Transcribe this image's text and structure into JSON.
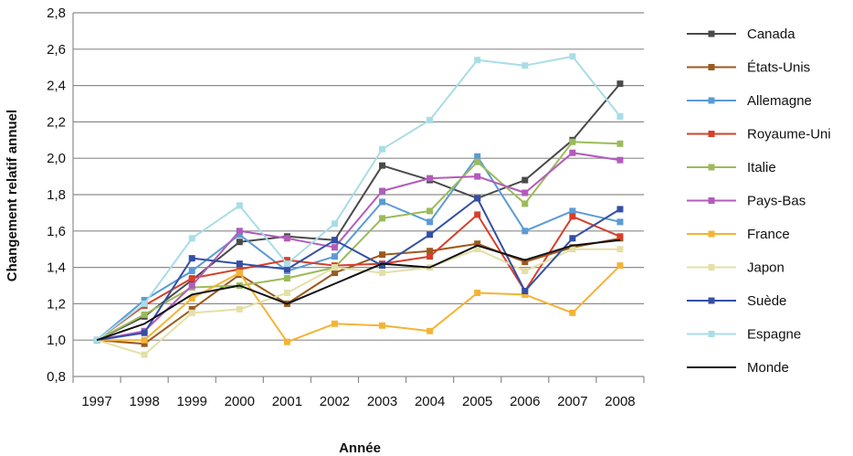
{
  "chart_data": {
    "type": "line",
    "xlabel": "Année",
    "ylabel": "Changement relatif annuel",
    "ylim": [
      0.8,
      2.8
    ],
    "y_ticks": [
      "0,8",
      "1,0",
      "1,2",
      "1,4",
      "1,6",
      "1,8",
      "2,0",
      "2,2",
      "2,4",
      "2,6",
      "2,8"
    ],
    "y_tick_values": [
      0.8,
      1.0,
      1.2,
      1.4,
      1.6,
      1.8,
      2.0,
      2.2,
      2.4,
      2.6,
      2.8
    ],
    "categories": [
      "1997",
      "1998",
      "1999",
      "2000",
      "2001",
      "2002",
      "2003",
      "2004",
      "2005",
      "2006",
      "2007",
      "2008"
    ],
    "grid": true,
    "legend_position": "right",
    "series": [
      {
        "name": "Canada",
        "color": "#4a4a4a",
        "marker": true,
        "values": [
          1.0,
          1.13,
          1.33,
          1.54,
          1.57,
          1.55,
          1.96,
          1.88,
          1.78,
          1.88,
          2.1,
          2.41
        ]
      },
      {
        "name": "États-Unis",
        "color": "#9b5a1e",
        "marker": true,
        "values": [
          1.0,
          0.98,
          1.17,
          1.36,
          1.2,
          1.37,
          1.47,
          1.49,
          1.53,
          1.43,
          1.51,
          1.56
        ]
      },
      {
        "name": "Allemagne",
        "color": "#5b9bd5",
        "marker": true,
        "values": [
          1.0,
          1.22,
          1.38,
          1.58,
          1.38,
          1.46,
          1.76,
          1.65,
          2.01,
          1.6,
          1.71,
          1.65
        ]
      },
      {
        "name": "Royaume-Uni",
        "color": "#d6402a",
        "marker": true,
        "values": [
          1.0,
          1.19,
          1.34,
          1.39,
          1.44,
          1.41,
          1.42,
          1.46,
          1.69,
          1.27,
          1.68,
          1.57
        ]
      },
      {
        "name": "Italie",
        "color": "#9bbb59",
        "marker": true,
        "values": [
          1.0,
          1.14,
          1.29,
          1.3,
          1.34,
          1.4,
          1.67,
          1.71,
          1.98,
          1.75,
          2.09,
          2.08
        ]
      },
      {
        "name": "Pays-Bas",
        "color": "#b35bbb",
        "marker": true,
        "values": [
          1.0,
          1.05,
          1.3,
          1.6,
          1.56,
          1.51,
          1.82,
          1.89,
          1.9,
          1.81,
          2.03,
          1.99
        ]
      },
      {
        "name": "France",
        "color": "#f5b335",
        "marker": true,
        "values": [
          1.0,
          1.0,
          1.23,
          1.37,
          0.99,
          1.09,
          1.08,
          1.05,
          1.26,
          1.25,
          1.15,
          1.41
        ]
      },
      {
        "name": "Japon",
        "color": "#e3e0a8",
        "marker": true,
        "values": [
          1.0,
          0.92,
          1.15,
          1.17,
          1.26,
          1.4,
          1.37,
          1.4,
          1.5,
          1.38,
          1.5,
          1.5
        ]
      },
      {
        "name": "Suède",
        "color": "#344fa6",
        "marker": true,
        "values": [
          1.0,
          1.04,
          1.45,
          1.42,
          1.39,
          1.55,
          1.41,
          1.58,
          1.78,
          1.27,
          1.56,
          1.72
        ]
      },
      {
        "name": "Espagne",
        "color": "#a8dde6",
        "marker": true,
        "values": [
          1.0,
          1.2,
          1.56,
          1.74,
          1.42,
          1.64,
          2.05,
          2.21,
          2.54,
          2.51,
          2.56,
          2.23
        ]
      },
      {
        "name": "Monde",
        "color": "#111111",
        "marker": false,
        "values": [
          1.0,
          1.09,
          1.25,
          1.3,
          1.2,
          1.31,
          1.42,
          1.4,
          1.52,
          1.44,
          1.52,
          1.55
        ]
      }
    ]
  }
}
